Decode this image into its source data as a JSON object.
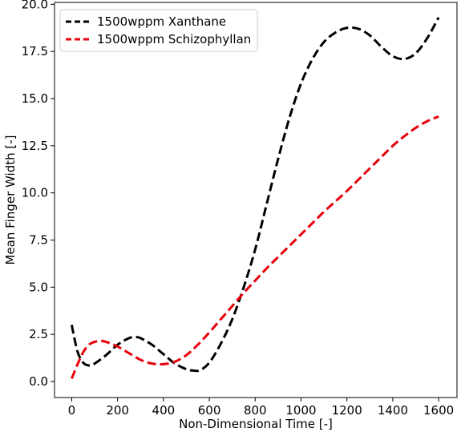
{
  "chart_data": {
    "type": "line",
    "title": "",
    "xlabel": "Non-Dimensional Time [-]",
    "ylabel": "Mean Finger Width [-]",
    "xlim": [
      -75,
      1680
    ],
    "ylim": [
      -0.85,
      20.1
    ],
    "xticks": [
      0,
      200,
      400,
      600,
      800,
      1000,
      1200,
      1400,
      1600
    ],
    "yticks": [
      "0.0",
      "2.5",
      "5.0",
      "7.5",
      "10.0",
      "12.5",
      "15.0",
      "17.5",
      "20.0"
    ],
    "ytick_values": [
      0,
      2.5,
      5,
      7.5,
      10,
      12.5,
      15,
      17.5,
      20
    ],
    "grid": false,
    "legend_position": "top-left",
    "series": [
      {
        "name": "1500wppm Xanthane",
        "color": "#000000",
        "linestyle": "dashed",
        "x": [
          0,
          25,
          50,
          75,
          100,
          150,
          200,
          250,
          280,
          300,
          350,
          400,
          450,
          500,
          530,
          560,
          600,
          650,
          700,
          750,
          800,
          850,
          900,
          950,
          1000,
          1050,
          1100,
          1150,
          1200,
          1250,
          1300,
          1350,
          1400,
          1450,
          1500,
          1550,
          1600
        ],
        "y": [
          3.0,
          1.6,
          1.0,
          0.85,
          0.95,
          1.4,
          1.95,
          2.3,
          2.35,
          2.3,
          1.95,
          1.45,
          0.95,
          0.65,
          0.58,
          0.6,
          1.0,
          2.0,
          3.3,
          5.0,
          7.0,
          9.4,
          11.8,
          14.0,
          15.8,
          17.1,
          18.0,
          18.5,
          18.75,
          18.7,
          18.35,
          17.75,
          17.25,
          17.1,
          17.4,
          18.2,
          19.3
        ]
      },
      {
        "name": "1500wppm Schizophyllan",
        "color": "#e8000b",
        "linestyle": "dashed",
        "x": [
          0,
          25,
          50,
          75,
          100,
          125,
          150,
          200,
          250,
          300,
          350,
          400,
          450,
          500,
          550,
          600,
          650,
          700,
          750,
          800,
          850,
          900,
          950,
          1000,
          1050,
          1100,
          1150,
          1200,
          1250,
          1300,
          1350,
          1400,
          1450,
          1500,
          1550,
          1600
        ],
        "y": [
          0.15,
          0.9,
          1.55,
          1.95,
          2.1,
          2.15,
          2.1,
          1.85,
          1.5,
          1.15,
          0.95,
          0.92,
          1.05,
          1.4,
          1.95,
          2.6,
          3.3,
          4.0,
          4.7,
          5.35,
          6.0,
          6.6,
          7.2,
          7.8,
          8.4,
          9.0,
          9.55,
          10.1,
          10.7,
          11.3,
          11.9,
          12.5,
          13.0,
          13.45,
          13.8,
          14.05
        ]
      }
    ]
  }
}
